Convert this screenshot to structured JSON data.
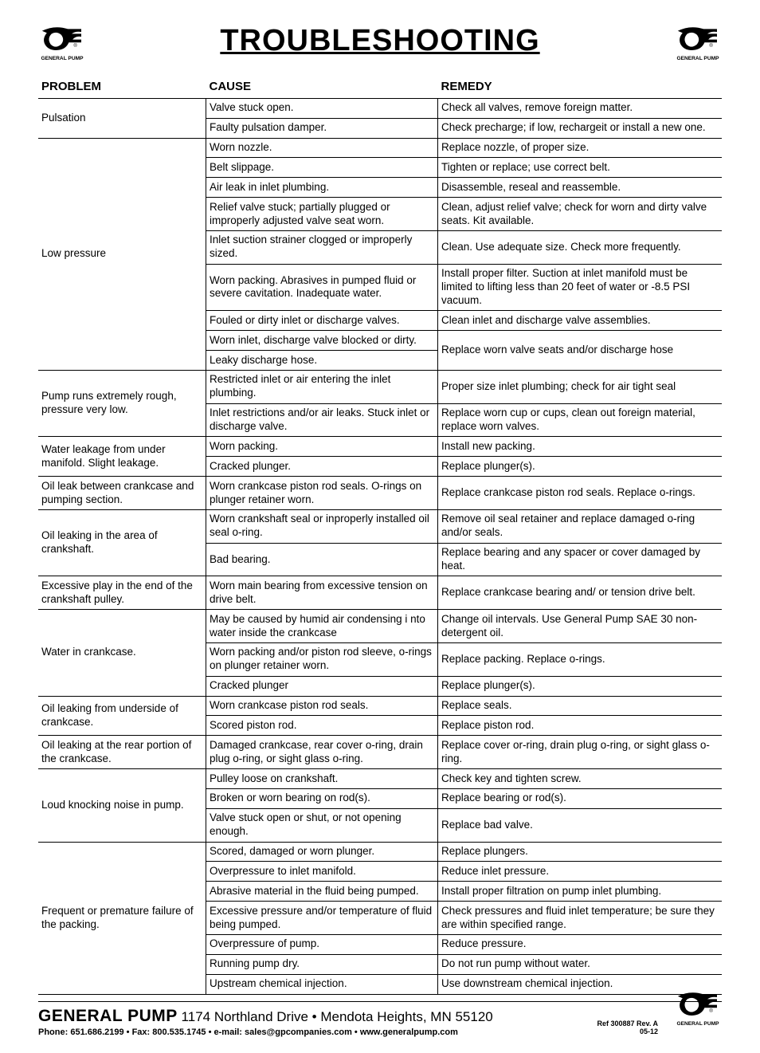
{
  "title": "TROUBLESHOOTING",
  "headers": {
    "problem": "PROBLEM",
    "cause": "CAUSE",
    "remedy": "REMEDY"
  },
  "problems": [
    {
      "problem": "Pulsation",
      "rows": [
        {
          "cause": "Valve stuck open.",
          "remedy": "Check all valves, remove foreign matter."
        },
        {
          "cause": "Faulty pulsation damper.",
          "remedy": "Check precharge; if low, rechargeit or install a new one."
        }
      ]
    },
    {
      "problem": "Low pressure",
      "rows": [
        {
          "cause": "Worn nozzle.",
          "remedy": "Replace nozzle, of proper size."
        },
        {
          "cause": "Belt slippage.",
          "remedy": "Tighten or replace; use correct belt."
        },
        {
          "cause": "Air leak in inlet plumbing.",
          "remedy": "Disassemble, reseal and reassemble."
        },
        {
          "cause": "Relief valve stuck; partially plugged or improperly adjusted valve seat worn.",
          "remedy": "Clean, adjust relief valve; check for worn and dirty valve seats. Kit available."
        },
        {
          "cause": "Inlet suction strainer clogged or improperly sized.",
          "remedy": "Clean. Use adequate size. Check more frequently."
        },
        {
          "cause": "Worn packing. Abrasives in pumped fluid or severe cavitation. Inadequate water.",
          "remedy": "Install proper filter. Suction at inlet manifold must be limited to lifting less than 20 feet of water or -8.5 PSI vacuum."
        },
        {
          "cause": "Fouled or dirty inlet or discharge valves.",
          "remedy": "Clean inlet and discharge valve assemblies."
        },
        {
          "cause": "Worn inlet, discharge valve blocked or dirty.",
          "remedy": "Replace worn valve seats and/or discharge hose",
          "remedy_rowspan": 2
        },
        {
          "cause": "Leaky discharge hose."
        }
      ]
    },
    {
      "problem": "Pump runs extremely rough, pressure very low.",
      "rows": [
        {
          "cause": "Restricted inlet or air entering the inlet plumbing.",
          "remedy": "Proper size inlet plumbing; check for air tight seal"
        },
        {
          "cause": "Inlet restrictions and/or air leaks. Stuck inlet or discharge valve.",
          "remedy": "Replace worn cup or cups, clean out foreign material, replace worn valves."
        }
      ]
    },
    {
      "problem": "Water leakage from under manifold. Slight leakage.",
      "rows": [
        {
          "cause": "Worn packing.",
          "remedy": "Install new packing."
        },
        {
          "cause": "Cracked plunger.",
          "remedy": "Replace plunger(s)."
        }
      ]
    },
    {
      "problem": "Oil leak between crankcase and pumping section.",
      "rows": [
        {
          "cause": "Worn crankcase piston rod seals. O-rings on plunger retainer worn.",
          "remedy": "Replace crankcase piston rod seals. Replace o-rings."
        }
      ]
    },
    {
      "problem": "Oil leaking in the area of crankshaft.",
      "rows": [
        {
          "cause": "Worn crankshaft seal or inproperly installed oil seal o-ring.",
          "remedy": "Remove oil seal retainer and replace damaged o-ring and/or seals."
        },
        {
          "cause": "Bad bearing.",
          "remedy": "Replace bearing and any spacer or cover damaged by heat."
        }
      ]
    },
    {
      "problem": "Excessive play in the end of the crankshaft pulley.",
      "rows": [
        {
          "cause": "Worn main bearing from excessive tension on drive belt.",
          "remedy": "Replace crankcase bearing and/ or tension drive belt."
        }
      ]
    },
    {
      "problem": "Water in crankcase.",
      "rows": [
        {
          "cause": "May be caused by humid air condensing i nto water inside the crankcase",
          "remedy": "Change oil intervals. Use General Pump SAE 30 non-detergent oil."
        },
        {
          "cause": "Worn packing and/or piston rod sleeve, o-rings on plunger retainer worn.",
          "remedy": "Replace packing. Replace o-rings."
        },
        {
          "cause": "Cracked plunger",
          "remedy": "Replace plunger(s)."
        }
      ]
    },
    {
      "problem": "Oil leaking from underside of crankcase.",
      "rows": [
        {
          "cause": "Worn crankcase piston rod seals.",
          "remedy": "Replace seals."
        },
        {
          "cause": "Scored piston rod.",
          "remedy": "Replace piston rod."
        }
      ]
    },
    {
      "problem": "Oil leaking at the rear portion of the crankcase.",
      "rows": [
        {
          "cause": "Damaged crankcase, rear cover o-ring, drain plug o-ring, or sight glass o-ring.",
          "remedy": "Replace cover or-ring, drain plug o-ring, or sight glass o-ring."
        }
      ]
    },
    {
      "problem": "Loud knocking noise in pump.",
      "rows": [
        {
          "cause": "Pulley loose on crankshaft.",
          "remedy": "Check key and tighten screw."
        },
        {
          "cause": "Broken or worn bearing on rod(s).",
          "remedy": "Replace bearing or rod(s)."
        },
        {
          "cause": "Valve stuck open or shut, or not opening enough.",
          "remedy": "Replace bad valve."
        }
      ]
    },
    {
      "problem": "Frequent or premature failure of the packing.",
      "rows": [
        {
          "cause": "Scored, damaged or worn plunger.",
          "remedy": "Replace plungers."
        },
        {
          "cause": "Overpressure to inlet manifold.",
          "remedy": "Reduce inlet pressure."
        },
        {
          "cause": "Abrasive material in the fluid being pumped.",
          "remedy": "Install proper filtration on pump inlet plumbing."
        },
        {
          "cause": "Excessive pressure and/or temperature of fluid being pumped.",
          "remedy": "Check pressures and fluid inlet temperature; be sure they are within specified range."
        },
        {
          "cause": "Overpressure of pump.",
          "remedy": "Reduce pressure."
        },
        {
          "cause": "Running pump dry.",
          "remedy": "Do not run pump without water."
        },
        {
          "cause": "Upstream chemical injection.",
          "remedy": "Use downstream chemical injection."
        }
      ]
    }
  ],
  "footer": {
    "company": "GENERAL PUMP",
    "address": "1174 Northland Drive • Mendota Heights, MN 55120",
    "contact": "Phone: 651.686.2199 • Fax: 800.535.1745 • e-mail: sales@gpcompanies.com • www.generalpump.com",
    "ref1": "Ref 300887 Rev. A",
    "ref2": "05-12"
  }
}
